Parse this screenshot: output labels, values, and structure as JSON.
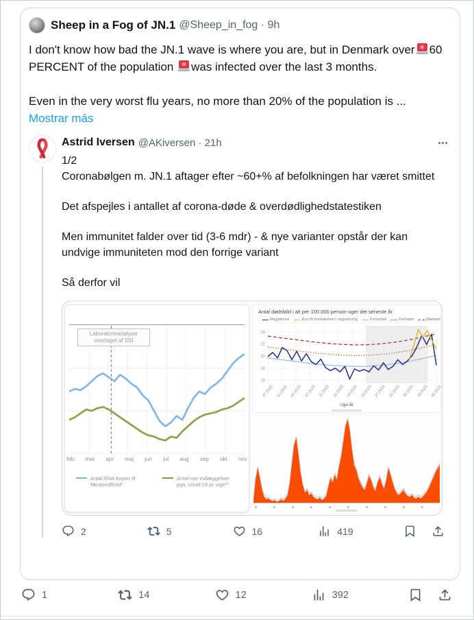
{
  "main_tweet": {
    "author": "Sheep in a Fog of JN.1",
    "handle": "@Sheep_in_fog",
    "separator": "·",
    "time": "9h",
    "text_before_first_emoji": "I don't know how bad the JN.1 wave is where you are, but in Denmark over",
    "emoji_name": "rotating-light",
    "text_between_emojis": "60 PERCENT of the population ",
    "text_after_second_emoji": "was infected over the last 3 months.",
    "second_paragraph": "Even in the very worst flu years, no more than 20% of the population is ...",
    "show_more_label": "Mostrar más",
    "stats": {
      "replies": "1",
      "reposts": "14",
      "likes": "12",
      "views": "392"
    }
  },
  "quoted_tweet": {
    "author": "Astrid Iversen",
    "handle": "@AKiversen",
    "separator": "·",
    "time": "21h",
    "thread_marker": "1/2",
    "paragraphs": [
      "Coronabølgen m. JN.1 aftager efter ~60+% af befolkningen har været smittet",
      "Det afspejles i antallet af corona-døde & overdødlighedstatestiken",
      "Men immunitet falder over tid (3-6 mdr) - & nye varianter opstår der kan undvige immuniteten mod den forrige variant",
      "Så derfor vil"
    ],
    "stats": {
      "replies": "2",
      "reposts": "5",
      "likes": "16",
      "views": "419"
    }
  },
  "chart_data": [
    {
      "id": "wastewater-vs-admissions",
      "type": "line",
      "annotation": "Laboratorieanalyser\novertaget af SSI",
      "vline_frac": 0.24,
      "x_labels": [
        "feb",
        "mar",
        "apr",
        "maj",
        "jun",
        "jul",
        "aug",
        "sep",
        "okt",
        "nov"
      ],
      "ylim": [
        0,
        100
      ],
      "grid": true,
      "legend_position": "bottom",
      "series": [
        {
          "name": "Antal RNA-kopier ift. fæcesindhold*",
          "color": "#7bb1d6",
          "values": [
            48,
            50,
            49,
            52,
            56,
            60,
            62,
            59,
            56,
            61,
            58,
            54,
            51,
            45,
            41,
            33,
            25,
            21,
            24,
            29,
            26,
            35,
            43,
            48,
            46,
            51,
            54,
            58,
            64,
            70,
            74,
            77
          ]
        },
        {
          "name": "Antal nye indlæggelser pga. covid-19 pr. uge**",
          "color": "#8e9340",
          "values": [
            26,
            28,
            31,
            34,
            33,
            35,
            36,
            34,
            31,
            28,
            25,
            22,
            19,
            16,
            14,
            13,
            11,
            10,
            13,
            12,
            17,
            21,
            25,
            28,
            30,
            31,
            32,
            34,
            35,
            37,
            40,
            43
          ]
        }
      ]
    },
    {
      "id": "mortality-per-100000",
      "type": "line",
      "title": "Antal dødsfald i alt per 100.000 person-uger det seneste år",
      "xlabel": "Uge-år",
      "x_labels": [
        "47-2022",
        "51-2022",
        "03-2023",
        "07-2023",
        "11-2023",
        "15-2023",
        "19-2023",
        "23-2023",
        "27-2023",
        "31-2023",
        "35-2023",
        "39-2023",
        "43-2023"
      ],
      "ylim": [
        15.5,
        25
      ],
      "yticks": [
        24,
        22,
        20,
        18,
        16
      ],
      "shaded_region_frac": [
        0.58,
        0.95
      ],
      "legend": [
        "Registreret",
        "Kun få forsinkelser i registrering",
        "Forventet",
        "Forhøjet",
        "Markant forhøjet"
      ],
      "series": [
        {
          "name": "Markant forhøjet",
          "style": "dashed",
          "color": "#9e3d3d",
          "values": [
            23.3,
            23.15,
            23.0,
            22.85,
            22.7,
            22.55,
            22.4,
            22.27,
            22.15,
            22.05,
            21.97,
            21.9,
            21.86,
            21.85,
            21.87,
            21.93,
            22.02,
            22.14,
            22.28,
            22.46,
            22.66,
            22.89,
            23.14,
            23.4,
            23.65
          ]
        },
        {
          "name": "Forhøjet",
          "style": "dotted",
          "color": "#b5651d",
          "values": [
            21.5,
            21.35,
            21.2,
            21.05,
            20.9,
            20.75,
            20.6,
            20.48,
            20.37,
            20.27,
            20.2,
            20.14,
            20.1,
            20.1,
            20.12,
            20.18,
            20.27,
            20.38,
            20.52,
            20.7,
            20.9,
            21.13,
            21.38,
            21.65,
            21.9
          ]
        },
        {
          "name": "Forventet",
          "style": "solid",
          "color": "#9fc0dd",
          "values": [
            19.7,
            19.55,
            19.4,
            19.25,
            19.1,
            18.95,
            18.8,
            18.68,
            18.57,
            18.47,
            18.4,
            18.34,
            18.3,
            18.3,
            18.32,
            18.38,
            18.47,
            18.58,
            18.72,
            18.9,
            19.1,
            19.33,
            19.58,
            19.85,
            20.1
          ]
        },
        {
          "name": "Registreret",
          "style": "solid",
          "color": "#2e3a87",
          "values": [
            19.9,
            20.6,
            19.7,
            21.4,
            20.9,
            19.4,
            20.8,
            19.2,
            20.4,
            19.1,
            18.6,
            19.5,
            18.1,
            17.6,
            18.0,
            17.4,
            18.3,
            16.2,
            17.9,
            17.5,
            17.8,
            17.4,
            18.4,
            17.7,
            18.9,
            17.8,
            18.3,
            19.4,
            18.6,
            19.2,
            20.1,
            21.6,
            23.4,
            21.9,
            23.6,
            18.5
          ]
        },
        {
          "name": "Kun få forsinkelser i registrering",
          "style": "solid",
          "color": "#e4b93c",
          "x_start_frac": 0.84,
          "values": [
            19.5,
            21.8,
            24.4,
            23.1,
            24.2,
            22.6,
            21.2
          ]
        }
      ]
    },
    {
      "id": "deaths-history",
      "type": "area",
      "color": "#fb4d00",
      "outline_color": "#bdbdbd",
      "ylim": [
        0,
        1
      ],
      "values": [
        0.02,
        0.28,
        0.42,
        0.3,
        0.16,
        0.08,
        0.05,
        0.06,
        0.04,
        0.03,
        0.04,
        0.02,
        0.03,
        0.05,
        0.03,
        0.06,
        0.1,
        0.24,
        0.48,
        0.7,
        0.78,
        0.58,
        0.36,
        0.22,
        0.13,
        0.16,
        0.1,
        0.12,
        0.08,
        0.06,
        0.05,
        0.07,
        0.04,
        0.06,
        0.09,
        0.2,
        0.3,
        0.25,
        0.34,
        0.28,
        0.44,
        0.56,
        0.74,
        0.92,
        1.0,
        0.86,
        0.64,
        0.46,
        0.4,
        0.3,
        0.24,
        0.19,
        0.16,
        0.24,
        0.33,
        0.27,
        0.19,
        0.15,
        0.25,
        0.31,
        0.23,
        0.17,
        0.27,
        0.42,
        0.34,
        0.25,
        0.17,
        0.12,
        0.1,
        0.13,
        0.16,
        0.12,
        0.09,
        0.08,
        0.1,
        0.07,
        0.06,
        0.08,
        0.06,
        0.08,
        0.11,
        0.14,
        0.19,
        0.25,
        0.31,
        0.37,
        0.42,
        0.46
      ]
    }
  ],
  "colors": {
    "text": "#0f1419",
    "secondary_text": "#536471",
    "link": "#1d9bf0",
    "card_border": "#cfd9de"
  }
}
